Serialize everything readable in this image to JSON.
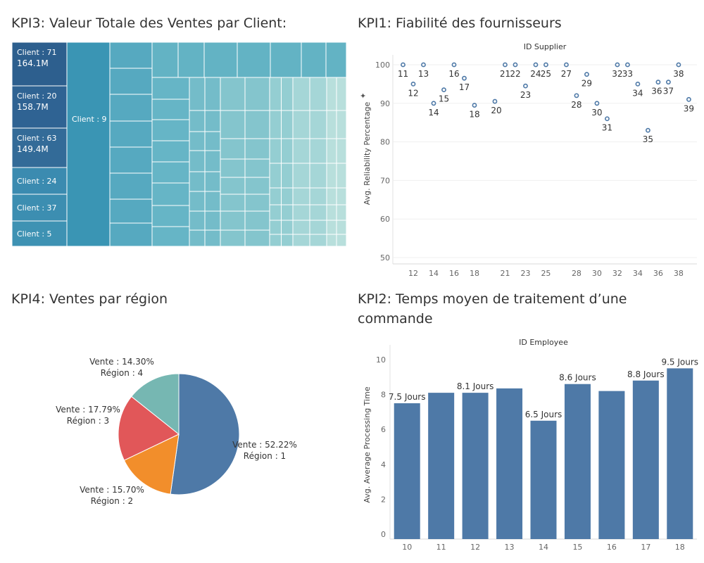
{
  "kpi3": {
    "title": "KPI3: Valeur Totale des Ventes par Client:",
    "chart_data": {
      "type": "treemap",
      "items": [
        {
          "label": "Client : 71",
          "value_label": "164.1M",
          "value": 164.1
        },
        {
          "label": "Client : 20",
          "value_label": "158.7M",
          "value": 158.7
        },
        {
          "label": "Client : 63",
          "value_label": "149.4M",
          "value": 149.4
        },
        {
          "label": "Client : 24"
        },
        {
          "label": "Client : 37"
        },
        {
          "label": "Client : 5"
        },
        {
          "label": "Client : 9"
        }
      ]
    }
  },
  "kpi1": {
    "title": "KPI1: Fiabilité des fournisseurs",
    "chart_data": {
      "type": "scatter",
      "top_axis_title": "ID Supplier",
      "ylabel": "Avg. Reliability Percentage",
      "ylim": [
        48,
        103
      ],
      "yticks": [
        50,
        60,
        70,
        80,
        90,
        100
      ],
      "xticks": [
        12,
        14,
        16,
        18,
        21,
        23,
        25,
        28,
        30,
        32,
        34,
        36,
        38
      ],
      "points": [
        {
          "x": 11,
          "y": 100
        },
        {
          "x": 12,
          "y": 95
        },
        {
          "x": 13,
          "y": 100
        },
        {
          "x": 14,
          "y": 90
        },
        {
          "x": 15,
          "y": 93.5
        },
        {
          "x": 16,
          "y": 100
        },
        {
          "x": 17,
          "y": 96.5
        },
        {
          "x": 18,
          "y": 89.5
        },
        {
          "x": 20,
          "y": 90.5
        },
        {
          "x": 21,
          "y": 100
        },
        {
          "x": 22,
          "y": 100
        },
        {
          "x": 23,
          "y": 94.5
        },
        {
          "x": 24,
          "y": 100
        },
        {
          "x": 25,
          "y": 100
        },
        {
          "x": 27,
          "y": 100
        },
        {
          "x": 28,
          "y": 92
        },
        {
          "x": 29,
          "y": 97.5
        },
        {
          "x": 30,
          "y": 90
        },
        {
          "x": 31,
          "y": 86
        },
        {
          "x": 32,
          "y": 100
        },
        {
          "x": 33,
          "y": 100
        },
        {
          "x": 34,
          "y": 95
        },
        {
          "x": 35,
          "y": 83
        },
        {
          "x": 36,
          "y": 95.5
        },
        {
          "x": 37,
          "y": 95.5
        },
        {
          "x": 38,
          "y": 100
        },
        {
          "x": 39,
          "y": 91
        }
      ]
    }
  },
  "kpi4": {
    "title": "KPI4: Ventes par région",
    "chart_data": {
      "type": "pie",
      "slices": [
        {
          "region": "Région : 1",
          "label": "Vente : 52.22%",
          "value": 52.22,
          "color": "#4e79a7"
        },
        {
          "region": "Région : 2",
          "label": "Vente : 15.70%",
          "value": 15.7,
          "color": "#f28e2b"
        },
        {
          "region": "Région : 3",
          "label": "Vente : 17.79%",
          "value": 17.79,
          "color": "#e15759"
        },
        {
          "region": "Région : 4",
          "label": "Vente : 14.30%",
          "value": 14.3,
          "color": "#76b7b2"
        }
      ]
    }
  },
  "kpi2": {
    "title_line1": "KPI2: Temps moyen de traitement d’une",
    "title_line2": "commande",
    "chart_data": {
      "type": "bar",
      "top_axis_title": "ID Employee",
      "ylabel": "Avg. Average Processing Time",
      "ylim": [
        0,
        10
      ],
      "yticks": [
        0,
        2,
        4,
        6,
        8,
        10
      ],
      "color": "#4e79a7",
      "categories": [
        "10",
        "11",
        "12",
        "13",
        "14",
        "15",
        "16",
        "17",
        "18"
      ],
      "values": [
        7.5,
        8.1,
        8.1,
        8.35,
        6.5,
        8.6,
        8.2,
        8.8,
        9.5
      ],
      "data_labels": [
        "7.5 Jours",
        "",
        "8.1 Jours",
        "",
        "6.5 Jours",
        "8.6 Jours",
        "",
        "8.8 Jours",
        "9.5 Jours"
      ]
    }
  }
}
